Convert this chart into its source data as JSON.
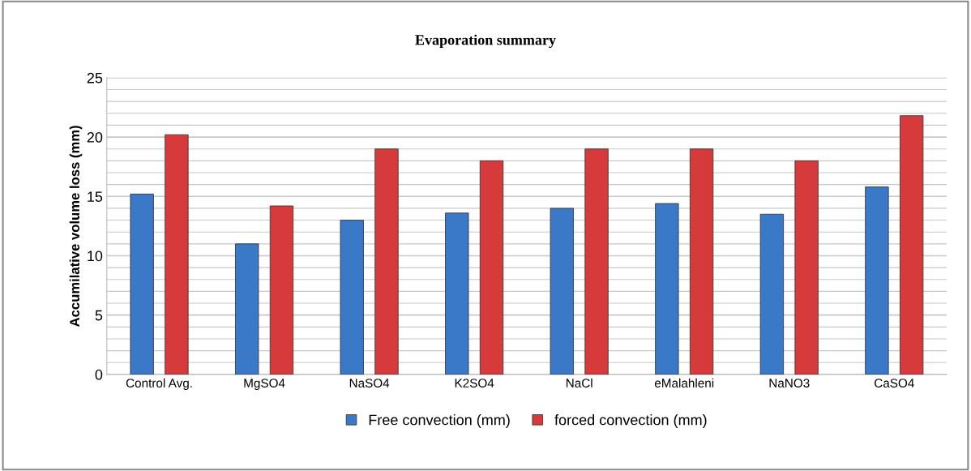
{
  "chart_data": {
    "type": "bar",
    "title": "Evaporation summary",
    "ylabel": "Accumilative volume loss (mm)",
    "categories": [
      "Control Avg.",
      "MgSO4",
      "NaSO4",
      "K2SO4",
      "NaCl",
      "eMalahleni",
      "NaNO3",
      "CaSO4"
    ],
    "series": [
      {
        "name": "Free convection (mm)",
        "color": "#3a78c8",
        "values": [
          15.2,
          11.0,
          13.0,
          13.6,
          14.0,
          14.4,
          13.5,
          15.8
        ]
      },
      {
        "name": "forced convection (mm)",
        "color": "#d63a3a",
        "values": [
          20.2,
          14.2,
          19.0,
          18.0,
          19.0,
          19.0,
          18.0,
          21.8
        ]
      }
    ],
    "ylim": [
      0,
      25
    ],
    "yticks": [
      0,
      5,
      10,
      15,
      20,
      25
    ],
    "grid": "y",
    "legend": "bottom"
  }
}
